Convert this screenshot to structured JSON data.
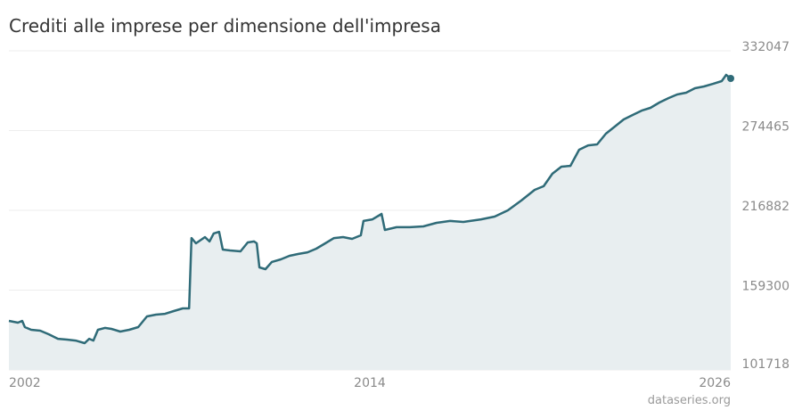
{
  "chart_data": {
    "type": "area",
    "title": "Crediti alle imprese per dimensione dell'impresa",
    "source": "dataseries.org",
    "color": "#2f6b78",
    "fill": "#e8eef0",
    "grid": true,
    "x": [
      2002.0,
      2002.3,
      2002.44,
      2002.53,
      2002.74,
      2003.04,
      2003.33,
      2003.63,
      2003.93,
      2004.22,
      2004.52,
      2004.67,
      2004.81,
      2004.96,
      2005.19,
      2005.41,
      2005.7,
      2006.0,
      2006.3,
      2006.59,
      2006.89,
      2007.19,
      2007.48,
      2007.78,
      2007.99,
      2008.07,
      2008.22,
      2008.52,
      2008.67,
      2008.81,
      2008.99,
      2009.11,
      2009.35,
      2009.7,
      2009.94,
      2010.15,
      2010.24,
      2010.33,
      2010.53,
      2010.74,
      2011.04,
      2011.33,
      2011.63,
      2011.93,
      2012.22,
      2012.52,
      2012.81,
      2013.11,
      2013.41,
      2013.7,
      2013.79,
      2014.09,
      2014.39,
      2014.5,
      2014.89,
      2015.33,
      2015.78,
      2016.22,
      2016.67,
      2017.11,
      2017.7,
      2018.15,
      2018.59,
      2019.04,
      2019.48,
      2019.78,
      2020.07,
      2020.37,
      2020.67,
      2020.96,
      2021.26,
      2021.56,
      2021.85,
      2022.15,
      2022.44,
      2022.74,
      2023.04,
      2023.33,
      2023.63,
      2023.93,
      2024.22,
      2024.52,
      2024.81,
      2025.11,
      2025.41,
      2025.7,
      2025.85,
      2026.0
    ],
    "values": [
      137100,
      135800,
      137100,
      132600,
      130700,
      130000,
      127400,
      124200,
      123600,
      122900,
      121000,
      124200,
      122900,
      130700,
      132000,
      131300,
      129400,
      130700,
      132600,
      140300,
      141600,
      142200,
      144200,
      146100,
      146100,
      196900,
      193100,
      197600,
      194400,
      200200,
      201400,
      188600,
      187900,
      187300,
      193700,
      194400,
      193100,
      175700,
      174400,
      179600,
      181500,
      184100,
      185400,
      186600,
      189200,
      193100,
      196900,
      197600,
      196300,
      198900,
      209200,
      210400,
      214300,
      202700,
      204700,
      204700,
      205300,
      207900,
      209200,
      208500,
      210400,
      212400,
      216900,
      224000,
      231700,
      234300,
      243300,
      248400,
      249000,
      260600,
      263800,
      264500,
      272200,
      277400,
      282500,
      285700,
      288900,
      290900,
      294700,
      297900,
      300500,
      301800,
      305000,
      306300,
      308200,
      310200,
      314700,
      312100
    ],
    "xlim": [
      2002,
      2026
    ],
    "xticks": [
      2002,
      2014,
      2026
    ],
    "ylim": [
      101718,
      332047
    ],
    "yticks": [
      101718,
      159300,
      216882,
      274465,
      332047
    ]
  }
}
